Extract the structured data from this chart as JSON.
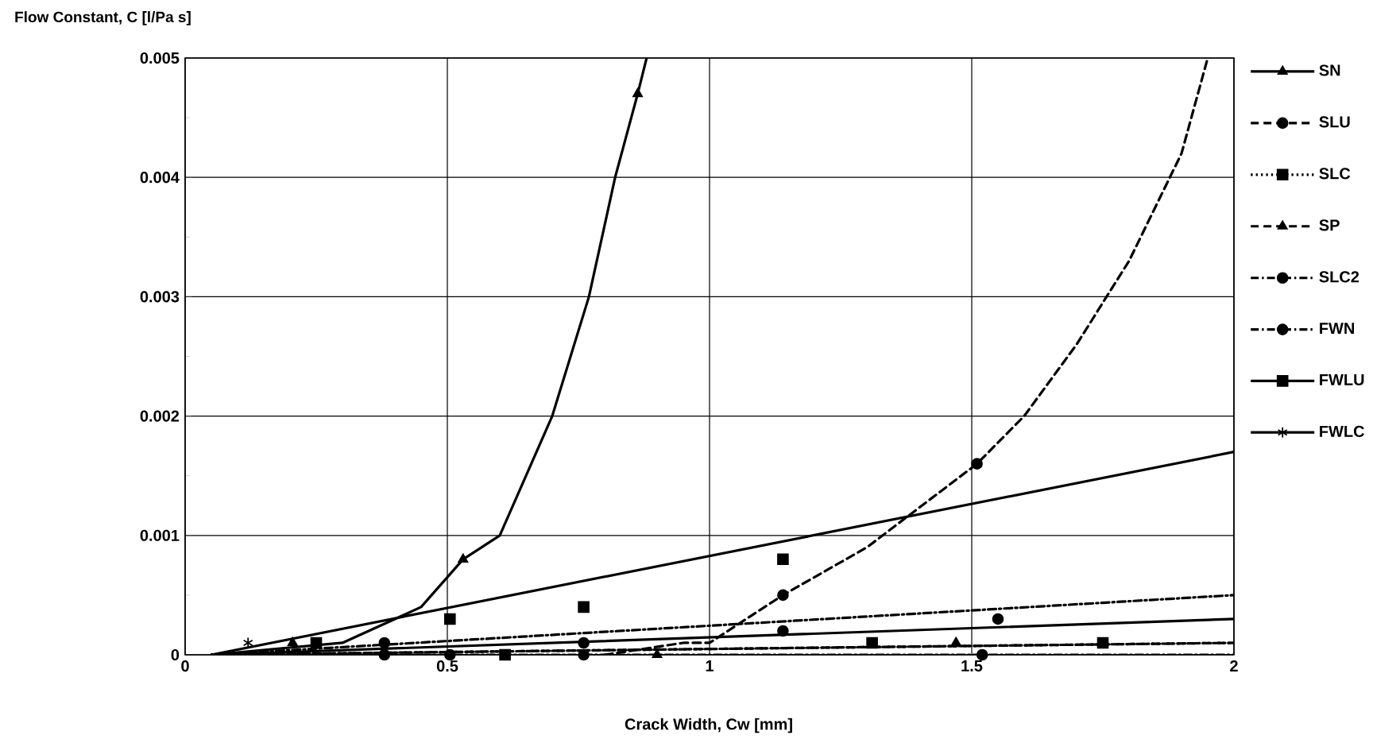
{
  "chart_data": {
    "type": "scatter",
    "xlabel": "Crack Width, Cw [mm]",
    "ylabel": "Flow Constant, C [l/Pa s]",
    "xlim": [
      0,
      2
    ],
    "ylim": [
      0,
      0.005
    ],
    "xticks": [
      0,
      0.5,
      1,
      1.5,
      2
    ],
    "yticks": [
      0,
      0.001,
      0.002,
      0.003,
      0.004,
      0.005
    ],
    "grid": true,
    "legend": "right",
    "series": [
      {
        "name": "SN",
        "color": "#000000",
        "marker": "triangle",
        "line_style": "solid",
        "x": [
          0.205,
          0.53,
          0.863
        ],
        "values": [
          0.0001,
          0.0008,
          0.0047
        ]
      },
      {
        "name": "SLU",
        "color": "#000000",
        "marker": "circle",
        "line_style": "dashed",
        "x": [
          0.76,
          1.14,
          1.51
        ],
        "values": [
          0,
          0.0005,
          0.0016
        ]
      },
      {
        "name": "SLC",
        "color": "#000000",
        "marker": "square",
        "line_style": "dotted",
        "x": [
          0.61,
          1.31,
          1.75
        ],
        "values": [
          0,
          0.0001,
          0.0001
        ]
      },
      {
        "name": "SP",
        "color": "#000000",
        "marker": "triangle",
        "line_style": "dashed",
        "x": [
          0.9,
          1.47
        ],
        "values": [
          0,
          0.0001
        ]
      },
      {
        "name": "SLC2",
        "color": "#000000",
        "marker": "circle",
        "line_style": "dashdot",
        "x": [
          0.38,
          0.505,
          1.52
        ],
        "values": [
          0,
          0,
          0
        ]
      },
      {
        "name": "FWN",
        "color": "#000000",
        "marker": "circle",
        "line_style": "dashdot",
        "x": [
          0.38,
          0.76,
          1.14,
          1.55
        ],
        "values": [
          0.0001,
          0.0001,
          0.0002,
          0.0003
        ]
      },
      {
        "name": "FWLU",
        "color": "#000000",
        "marker": "square",
        "line_style": "solid",
        "x": [
          0.25,
          0.505,
          0.76,
          1.14
        ],
        "values": [
          0.0001,
          0.0003,
          0.0004,
          0.0008
        ]
      },
      {
        "name": "FWLC",
        "color": "#000000",
        "marker": "cross",
        "line_style": "solid",
        "x": [
          0.12
        ],
        "values": [
          0.0001
        ]
      },
      {
        "type": "line",
        "color": "#000000",
        "line_style": "solid",
        "x": [
          0.05,
          0.3,
          0.4,
          0.45,
          0.53,
          0.6,
          0.7,
          0.77,
          0.82,
          0.863,
          0.88
        ],
        "values": [
          0,
          0.0001,
          0.0003,
          0.0004,
          0.0008,
          0.001,
          0.002,
          0.003,
          0.004,
          0.0047,
          0.005
        ]
      },
      {
        "type": "line",
        "color": "#000000",
        "line_style": "dashed",
        "x": [
          0.8,
          0.95,
          1.0,
          1.14,
          1.3,
          1.51,
          1.6,
          1.7,
          1.8,
          1.9,
          1.95
        ],
        "values": [
          0,
          0.0001,
          0.0001,
          0.0005,
          0.0009,
          0.0016,
          0.002,
          0.0026,
          0.0033,
          0.0042,
          0.005
        ]
      },
      {
        "type": "line",
        "color": "#000000",
        "line_style": "dotted",
        "x": [
          0.05,
          2
        ],
        "values": [
          0,
          0.0001
        ]
      },
      {
        "type": "line",
        "color": "#000000",
        "line_style": "dashed",
        "x": [
          0.05,
          2
        ],
        "values": [
          0,
          0.0001
        ]
      },
      {
        "type": "line",
        "color": "#000000",
        "line_style": "dashdot",
        "x": [
          0.05,
          2
        ],
        "values": [
          0,
          0
        ]
      },
      {
        "type": "line",
        "color": "#000000",
        "line_style": "dashdot",
        "x": [
          0.05,
          2
        ],
        "values": [
          0,
          0.0005
        ]
      },
      {
        "type": "line",
        "color": "#000000",
        "line_style": "solid",
        "x": [
          0.05,
          2
        ],
        "values": [
          0,
          0.0017
        ]
      },
      {
        "type": "line",
        "color": "#000000",
        "line_style": "solid",
        "x": [
          0.05,
          2
        ],
        "values": [
          0,
          0.0003
        ]
      }
    ]
  }
}
